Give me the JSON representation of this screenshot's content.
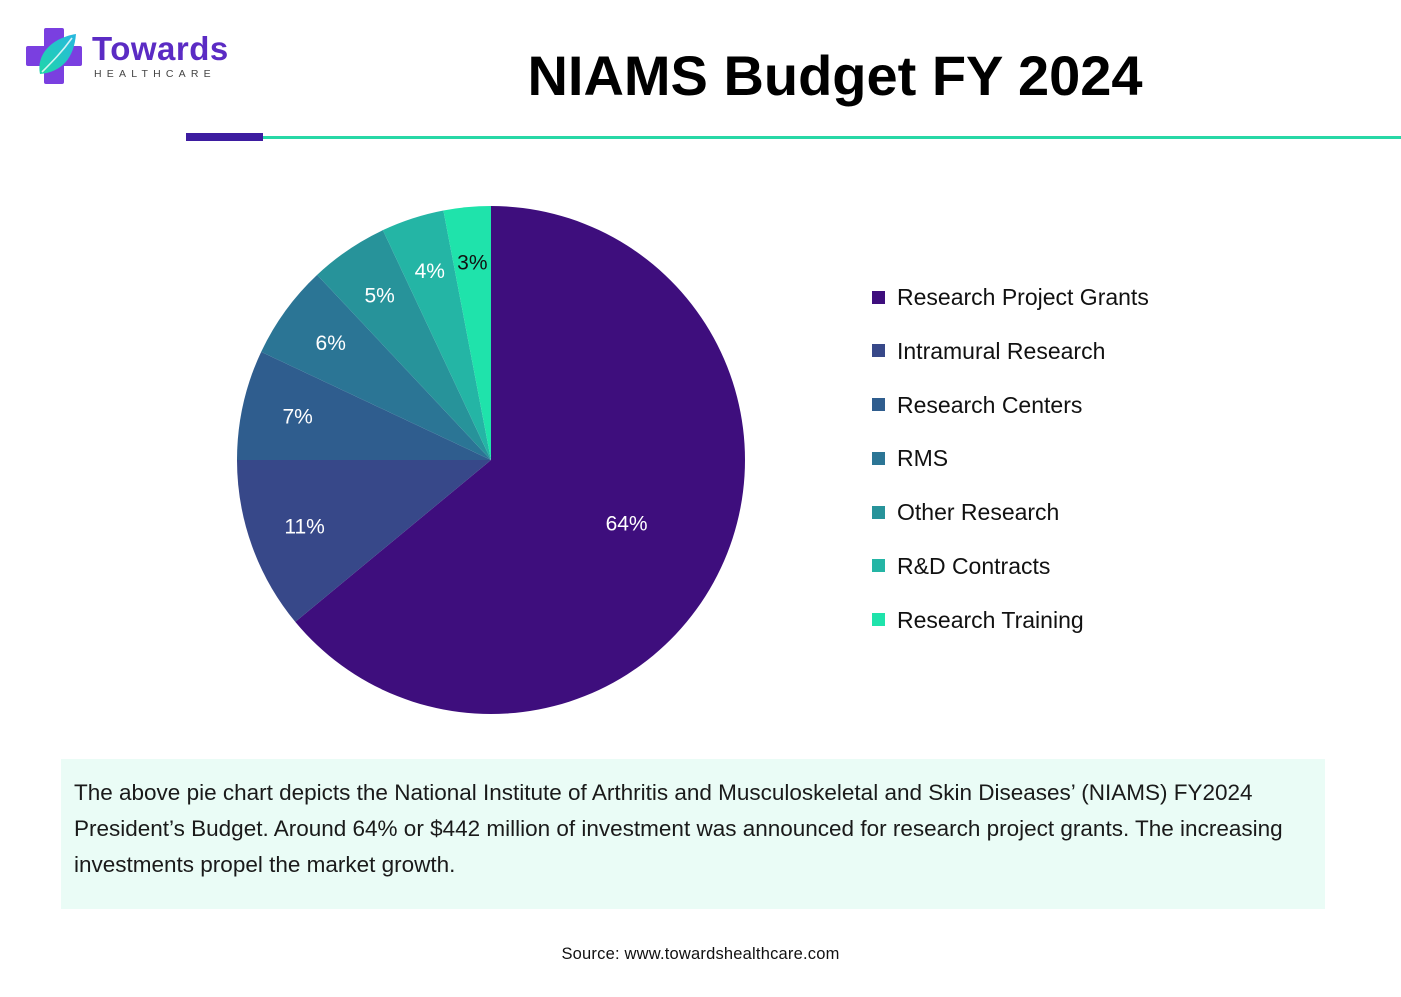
{
  "brand": {
    "name": "Towards",
    "sub": "HEALTHCARE",
    "colors": {
      "primary": "#5b2bc4",
      "accent": "#27d8a6"
    }
  },
  "title": "NIAMS Budget FY 2024",
  "chart_data": {
    "type": "pie",
    "title": "NIAMS Budget FY 2024",
    "categories": [
      "Research Project Grants",
      "Intramural Research",
      "Research Centers",
      "RMS",
      "Other Research",
      "R&D Contracts",
      "Research Training"
    ],
    "values": [
      64,
      11,
      7,
      6,
      5,
      4,
      3
    ],
    "labels": [
      "64%",
      "11%",
      "7%",
      "6%",
      "5%",
      "4%",
      "3%"
    ],
    "colors": [
      "#3e0e7d",
      "#374889",
      "#2f5d8e",
      "#2b7595",
      "#27939a",
      "#24b5a5",
      "#1fe3ab"
    ],
    "label_colors": [
      "#ffffff",
      "#ffffff",
      "#ffffff",
      "#ffffff",
      "#ffffff",
      "#ffffff",
      "#111111"
    ],
    "legend_position": "right",
    "start": "top",
    "direction": "clockwise"
  },
  "description": "The above pie chart depicts the National Institute of Arthritis and Musculoskeletal and Skin Diseases’ (NIAMS) FY2024 President’s Budget. Around 64% or $442 million of investment was announced for research project grants. The increasing investments propel the market growth.",
  "source": "Source: www.towardshealthcare.com"
}
